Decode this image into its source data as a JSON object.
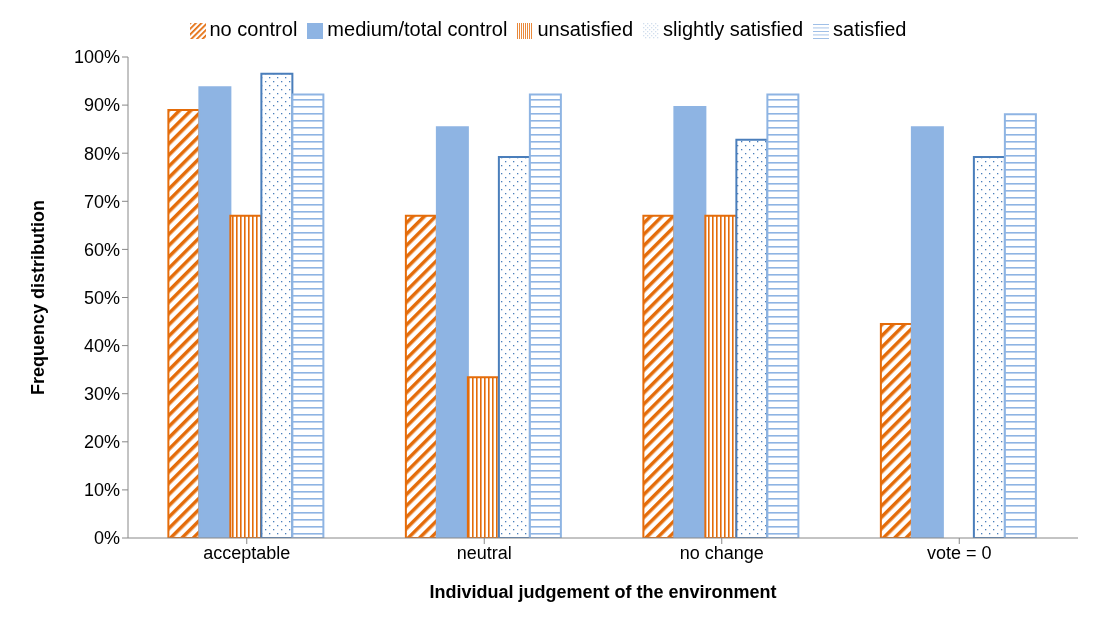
{
  "chart_data": {
    "type": "bar",
    "xlabel": "Individual judgement of the environment",
    "ylabel": "Frequency distribution",
    "categories": [
      "acceptable",
      "neutral",
      "no change",
      "vote = 0"
    ],
    "series": [
      {
        "name": "no control",
        "color": "#e46c0a",
        "values": [
          89,
          67,
          67,
          44.5
        ]
      },
      {
        "name": "medium/total control",
        "color": "#8eb4e3",
        "values": [
          93.7,
          85.4,
          89.6,
          85.4
        ]
      },
      {
        "name": "unsatisfied",
        "color": "#e46c0a",
        "values": [
          67,
          33.4,
          67,
          null
        ]
      },
      {
        "name": "slightly satisfied",
        "color": "#4a7ebb",
        "values": [
          96.5,
          79.2,
          82.8,
          79.2
        ]
      },
      {
        "name": "satisfied",
        "color": "#8eb4e3",
        "values": [
          92.2,
          92.2,
          92.2,
          88.1
        ]
      }
    ],
    "ylim": [
      0,
      100
    ],
    "yticks": [
      {
        "value": 0,
        "label": "0%"
      },
      {
        "value": 10,
        "label": "10%"
      },
      {
        "value": 20,
        "label": "20%"
      },
      {
        "value": 30,
        "label": "30%"
      },
      {
        "value": 40,
        "label": "40%"
      },
      {
        "value": 50,
        "label": "50%"
      },
      {
        "value": 60,
        "label": "60%"
      },
      {
        "value": 70,
        "label": "70%"
      },
      {
        "value": 80,
        "label": "80%"
      },
      {
        "value": 90,
        "label": "90%"
      },
      {
        "value": 100,
        "label": "100%"
      }
    ],
    "legend": "top",
    "grid": false
  }
}
